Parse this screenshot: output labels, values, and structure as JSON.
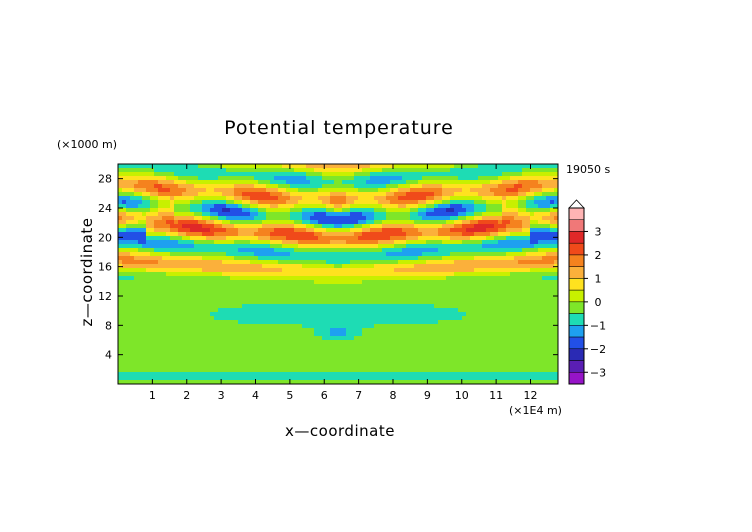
{
  "chart_data": {
    "type": "heatmap",
    "title": "Potential temperature",
    "xlabel": "x—coordinate",
    "ylabel": "z—coordinate",
    "x_unit": "(×1E4 m)",
    "y_unit": "(×1000 m)",
    "time_label": "19050 s",
    "xlim": [
      0,
      12.8
    ],
    "ylim": [
      0,
      30
    ],
    "x_ticks": [
      1,
      2,
      3,
      4,
      5,
      6,
      7,
      8,
      9,
      10,
      11,
      12
    ],
    "y_ticks": [
      4,
      8,
      12,
      16,
      20,
      24,
      28
    ],
    "colorbar": {
      "ticks": [
        3,
        2,
        1,
        0,
        -1,
        -2,
        -3
      ],
      "levels": [
        {
          "min": 3.5,
          "max": 4.0,
          "color": "#ffb4b4"
        },
        {
          "min": 3.0,
          "max": 3.5,
          "color": "#f07878"
        },
        {
          "min": 2.5,
          "max": 3.0,
          "color": "#e02828"
        },
        {
          "min": 2.0,
          "max": 2.5,
          "color": "#f04a1a"
        },
        {
          "min": 1.5,
          "max": 2.0,
          "color": "#f5821e"
        },
        {
          "min": 1.0,
          "max": 1.5,
          "color": "#fbb03b"
        },
        {
          "min": 0.5,
          "max": 1.0,
          "color": "#ffe21f"
        },
        {
          "min": 0.0,
          "max": 0.5,
          "color": "#c8f000"
        },
        {
          "min": -0.5,
          "max": 0.0,
          "color": "#7ee629"
        },
        {
          "min": -1.0,
          "max": -0.5,
          "color": "#1edcb4"
        },
        {
          "min": -1.5,
          "max": -1.0,
          "color": "#1ea0f0"
        },
        {
          "min": -2.0,
          "max": -1.5,
          "color": "#2250e6"
        },
        {
          "min": -2.5,
          "max": -2.0,
          "color": "#2a2ab4"
        },
        {
          "min": -3.0,
          "max": -2.5,
          "color": "#5a1eb4"
        },
        {
          "min": -3.5,
          "max": -3.0,
          "color": "#9614c8"
        }
      ]
    },
    "grid": false
  }
}
